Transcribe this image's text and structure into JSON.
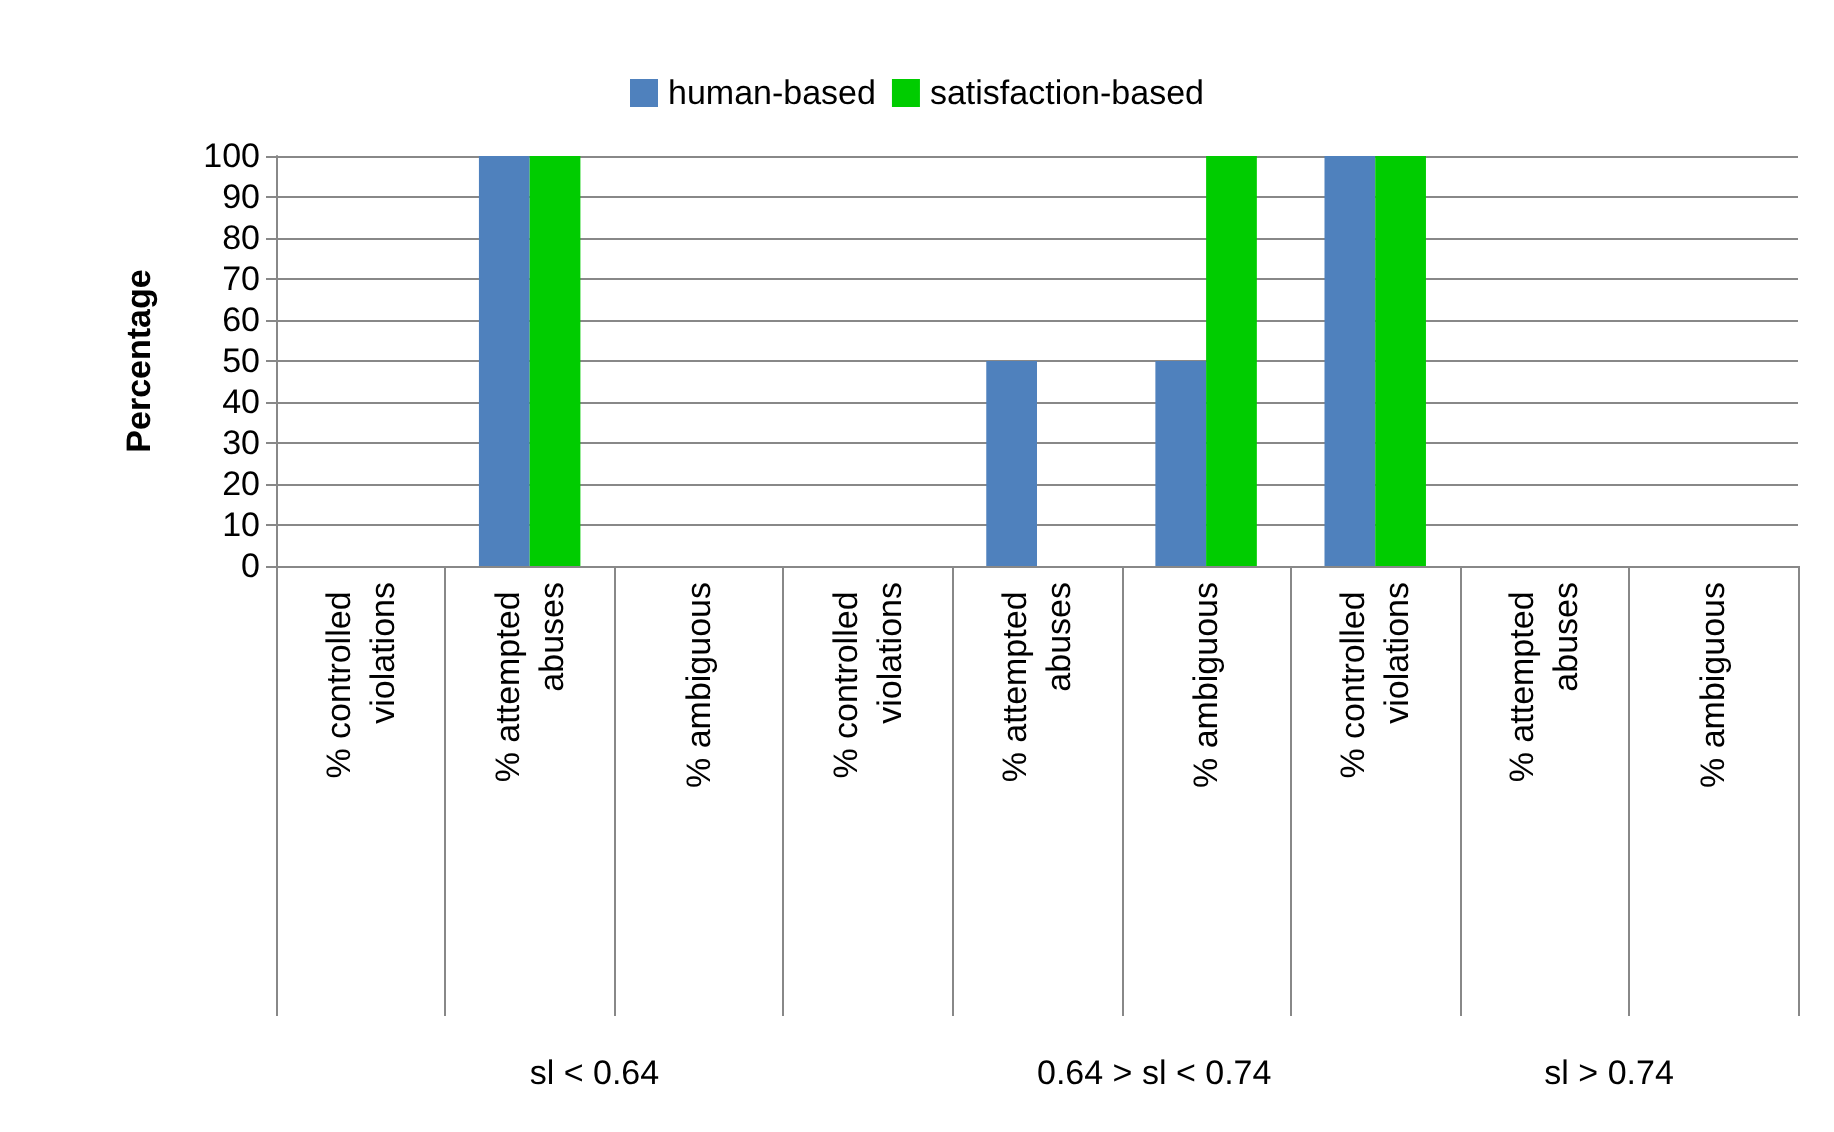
{
  "chart_data": {
    "type": "bar",
    "ylabel": "Percentage",
    "categories": [
      "% controlled violations",
      "% attempted abuses",
      "% ambiguous",
      "% controlled violations",
      "% attempted abuses",
      "% ambiguous",
      "% controlled violations",
      "% attempted abuses",
      "% ambiguous"
    ],
    "series": [
      {
        "name": "human-based",
        "color": "#4f81bd",
        "values": [
          0,
          100,
          0,
          0,
          50,
          50,
          100,
          0,
          0
        ]
      },
      {
        "name": "satisfaction-based",
        "color": "#00cc00",
        "values": [
          0,
          100,
          0,
          0,
          0,
          100,
          100,
          0,
          0
        ]
      }
    ],
    "ylim": [
      0,
      100
    ],
    "yticks": [
      0,
      10,
      20,
      30,
      40,
      50,
      60,
      70,
      80,
      90,
      100
    ],
    "grid": "y",
    "legend": "top",
    "annotations": [
      "sl < 0.64",
      "0.64 > sl < 0.74",
      "sl > 0.74"
    ]
  }
}
